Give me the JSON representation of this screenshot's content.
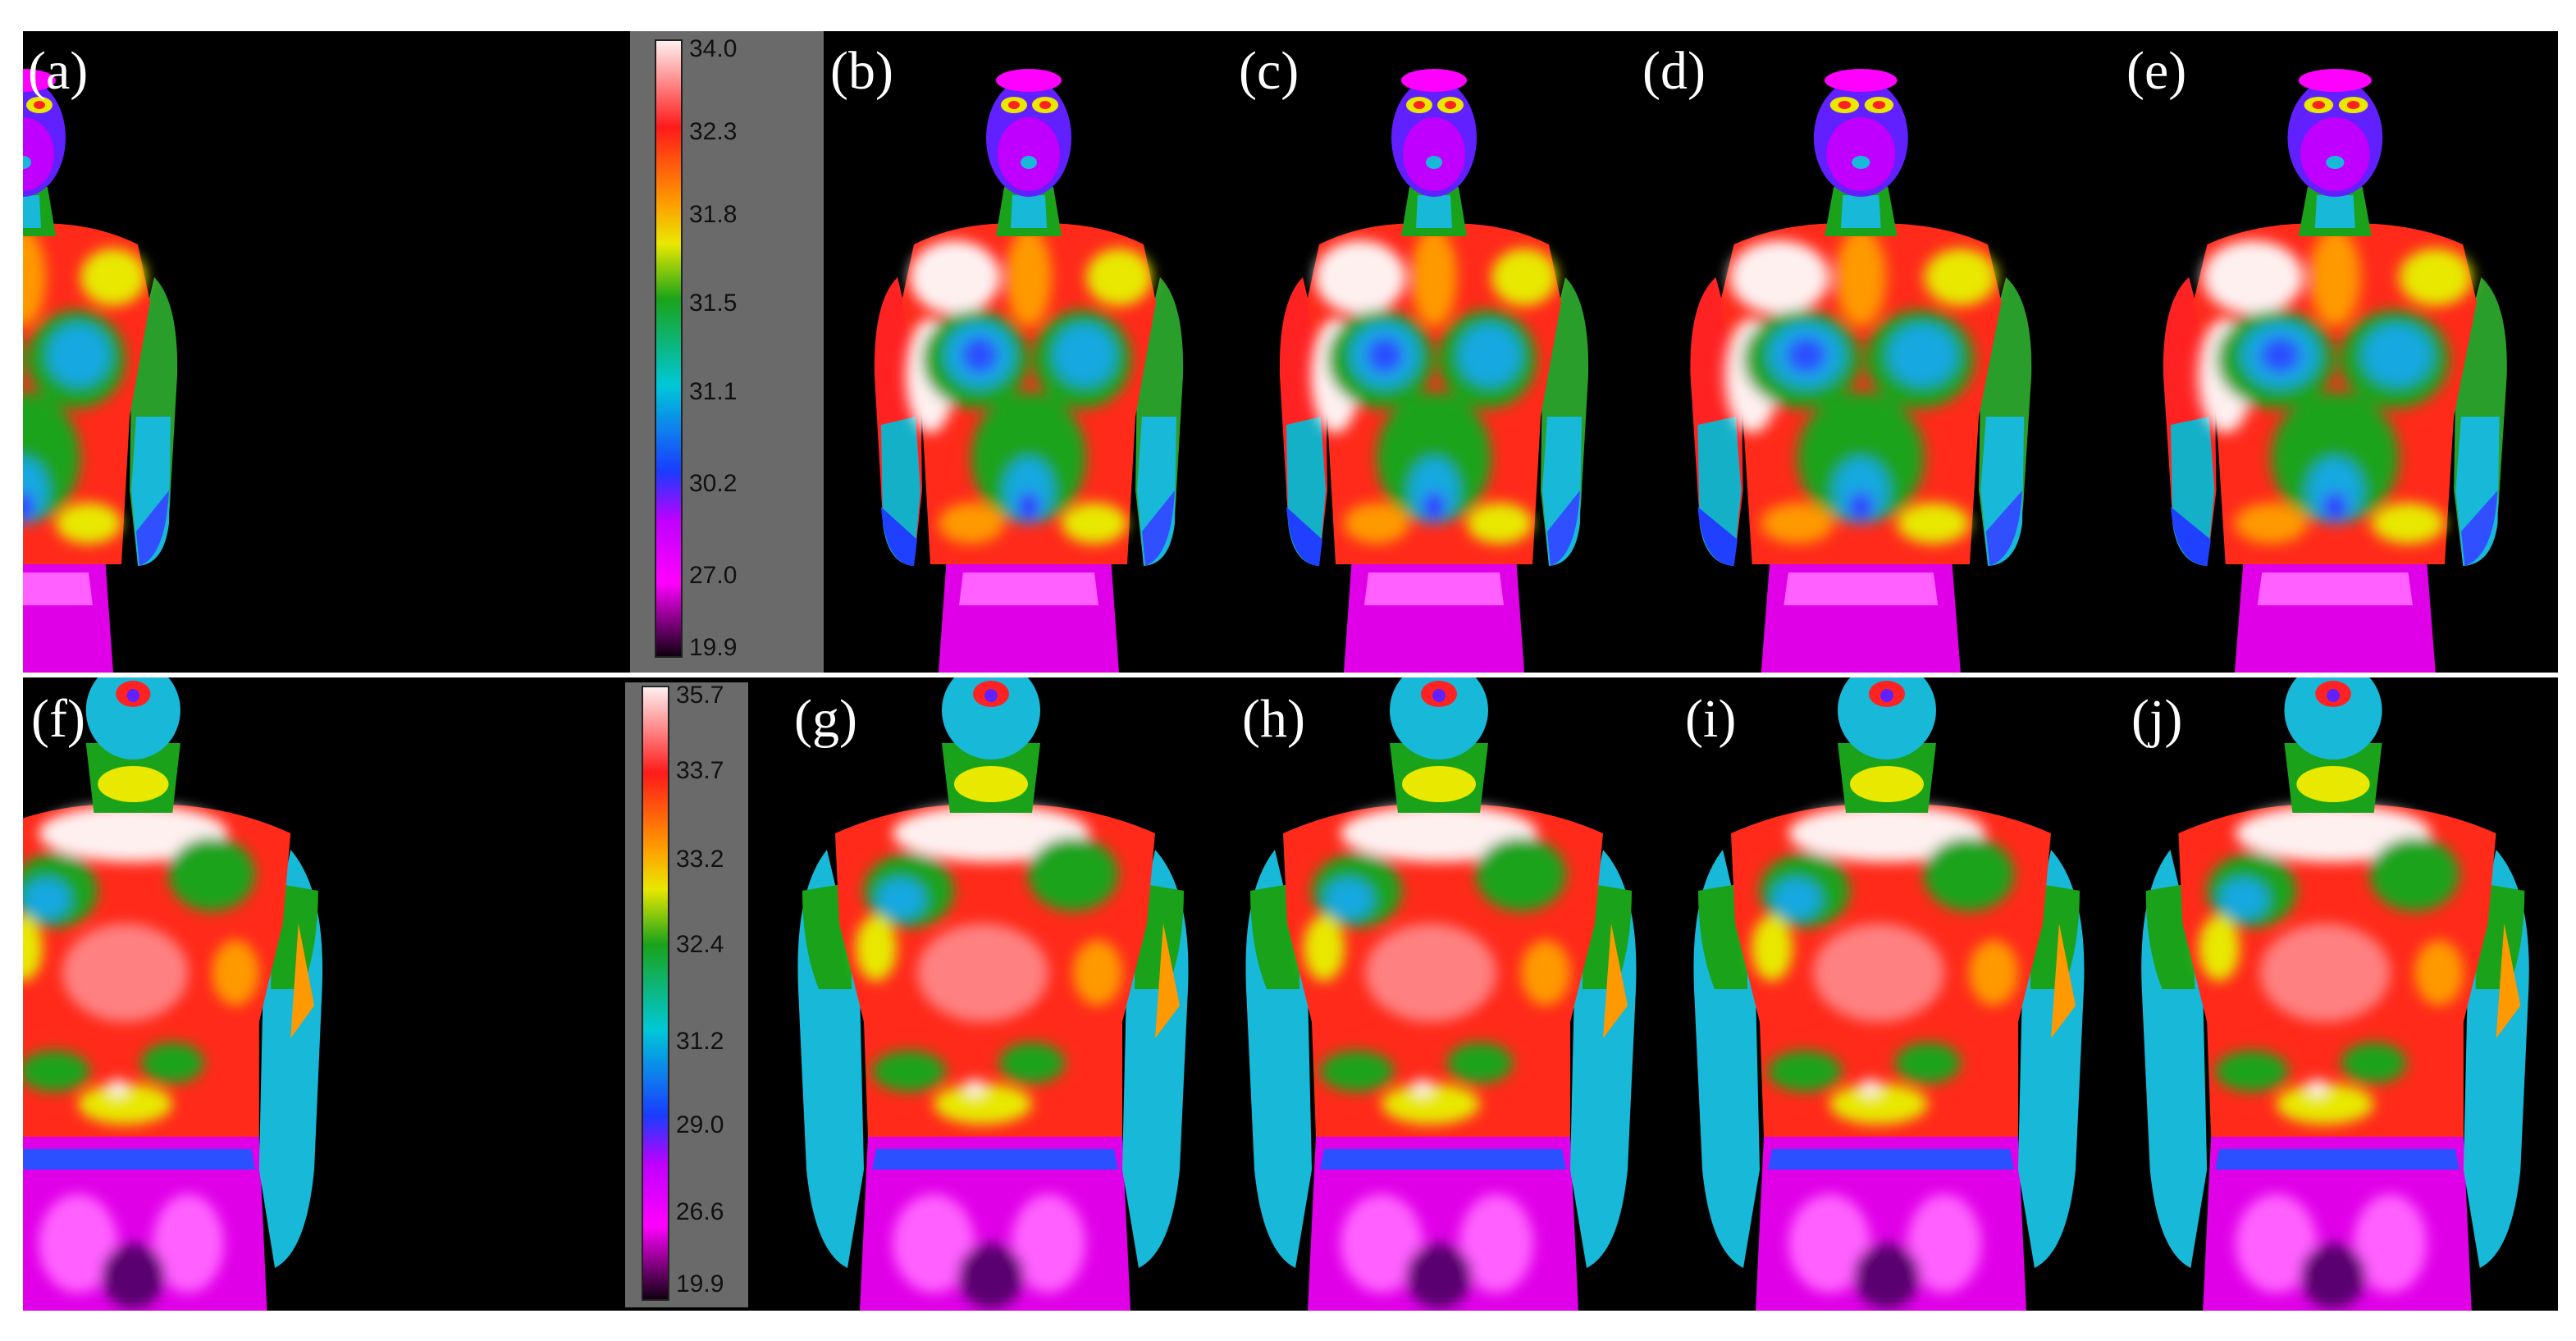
{
  "figure": {
    "rows": [
      {
        "panels": [
          {
            "label": "(a)"
          },
          {
            "label": "(b)"
          },
          {
            "label": "(c)"
          },
          {
            "label": "(d)"
          },
          {
            "label": "(e)"
          }
        ],
        "scale": {
          "ticks": [
            "34.0",
            "32.3",
            "31.8",
            "31.5",
            "31.1",
            "30.2",
            "27.0",
            "19.9"
          ]
        }
      },
      {
        "panels": [
          {
            "label": "(f)"
          },
          {
            "label": "(g)"
          },
          {
            "label": "(h)"
          },
          {
            "label": "(i)"
          },
          {
            "label": "(j)"
          }
        ],
        "scale": {
          "ticks": [
            "35.7",
            "33.7",
            "33.2",
            "32.4",
            "31.2",
            "29.0",
            "26.6",
            "19.9"
          ]
        }
      }
    ],
    "palette": {
      "background": "#000000",
      "scale_panel": "#6a6a6a",
      "gradient_stops": [
        "#fff0f0",
        "#ff1a1a",
        "#ff9900",
        "#e8e800",
        "#1aa31a",
        "#00c8d8",
        "#1a3cff",
        "#c000ff",
        "#ff00ff",
        "#100010"
      ]
    }
  }
}
